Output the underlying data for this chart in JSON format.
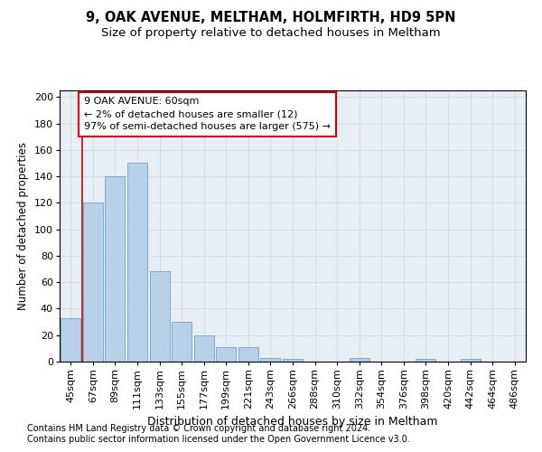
{
  "title": "9, OAK AVENUE, MELTHAM, HOLMFIRTH, HD9 5PN",
  "subtitle": "Size of property relative to detached houses in Meltham",
  "xlabel": "Distribution of detached houses by size in Meltham",
  "ylabel": "Number of detached properties",
  "categories": [
    "45sqm",
    "67sqm",
    "89sqm",
    "111sqm",
    "133sqm",
    "155sqm",
    "177sqm",
    "199sqm",
    "221sqm",
    "243sqm",
    "266sqm",
    "288sqm",
    "310sqm",
    "332sqm",
    "354sqm",
    "376sqm",
    "398sqm",
    "420sqm",
    "442sqm",
    "464sqm",
    "486sqm"
  ],
  "values": [
    33,
    120,
    140,
    150,
    68,
    30,
    20,
    11,
    11,
    3,
    2,
    0,
    0,
    3,
    0,
    0,
    2,
    0,
    2,
    0,
    0
  ],
  "bar_color": "#b8d0e8",
  "bar_edge_color": "#7aabcf",
  "highlight_line_color": "#cc0000",
  "annotation_line1": "9 OAK AVENUE: 60sqm",
  "annotation_line2": "← 2% of detached houses are smaller (12)",
  "annotation_line3": "97% of semi-detached houses are larger (575) →",
  "annotation_box_color": "#ffffff",
  "annotation_box_edge": "#cc0000",
  "ylim": [
    0,
    205
  ],
  "yticks": [
    0,
    20,
    40,
    60,
    80,
    100,
    120,
    140,
    160,
    180,
    200
  ],
  "grid_color": "#d0d8e0",
  "bg_color": "#e8eef5",
  "fig_bg_color": "#ffffff",
  "footer1": "Contains HM Land Registry data © Crown copyright and database right 2024.",
  "footer2": "Contains public sector information licensed under the Open Government Licence v3.0.",
  "title_fontsize": 10.5,
  "subtitle_fontsize": 9.5,
  "xlabel_fontsize": 9,
  "ylabel_fontsize": 8.5,
  "tick_fontsize": 8,
  "annotation_fontsize": 8,
  "footer_fontsize": 7
}
